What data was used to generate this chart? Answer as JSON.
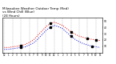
{
  "title": "Milwaukee Weather Outdoor Temp (Red)\nvs Wind Chill (Blue)\n(24 Hours)",
  "title_fontsize": 3.0,
  "background_color": "#ffffff",
  "grid_color": "#888888",
  "hours": [
    0,
    1,
    2,
    3,
    4,
    5,
    6,
    7,
    8,
    9,
    10,
    11,
    12,
    13,
    14,
    15,
    16,
    17,
    18,
    19,
    20,
    21,
    22,
    23
  ],
  "temp_red": [
    8,
    8,
    9,
    10,
    11,
    13,
    16,
    20,
    27,
    34,
    41,
    46,
    48,
    46,
    43,
    38,
    33,
    29,
    26,
    24,
    22,
    21,
    20,
    19
  ],
  "windchill_blue": [
    5,
    5,
    6,
    7,
    8,
    9,
    12,
    15,
    21,
    28,
    35,
    40,
    43,
    41,
    38,
    32,
    26,
    21,
    17,
    14,
    12,
    10,
    9,
    8
  ],
  "marker_hours_red": [
    4,
    11,
    16,
    20,
    22
  ],
  "marker_hours_blue": [
    4,
    11,
    16,
    21
  ],
  "ylim": [
    0,
    55
  ],
  "yticks": [
    10,
    20,
    30,
    40,
    50
  ],
  "ytick_labels": [
    "10",
    "20",
    "30",
    "40",
    "50"
  ],
  "xlim": [
    -0.5,
    23.5
  ],
  "xtick_hours": [
    0,
    1,
    2,
    3,
    4,
    5,
    6,
    7,
    8,
    9,
    10,
    11,
    12,
    13,
    14,
    15,
    16,
    17,
    18,
    19,
    20,
    21,
    22,
    23
  ],
  "xtick_labels": [
    "12",
    "1",
    "2",
    "3",
    "4",
    "5",
    "6",
    "7",
    "8",
    "9",
    "10",
    "11",
    "12",
    "1",
    "2",
    "3",
    "4",
    "5",
    "6",
    "7",
    "8",
    "9",
    "10",
    "11"
  ],
  "grid_hours": [
    0,
    2,
    4,
    6,
    8,
    10,
    12,
    14,
    16,
    18,
    20,
    22
  ],
  "red_color": "#dd0000",
  "blue_color": "#0000cc",
  "marker_color": "#000000",
  "line_width": 0.7,
  "marker_size": 1.5,
  "figwidth": 1.45,
  "figheight": 0.8,
  "dpi": 100
}
